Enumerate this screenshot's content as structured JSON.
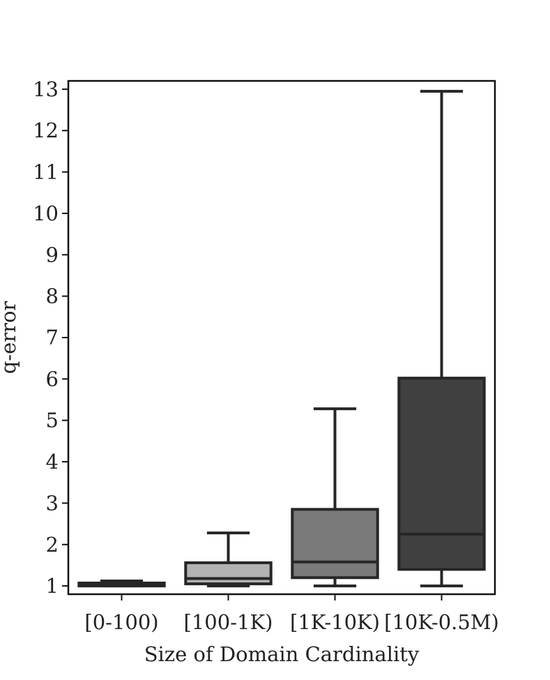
{
  "chart_data": {
    "type": "box",
    "xlabel": "Size of Domain Cardinality",
    "ylabel": "q-error",
    "ylim": [
      0.8,
      13.2
    ],
    "yticks": [
      1,
      2,
      3,
      4,
      5,
      6,
      7,
      8,
      9,
      10,
      11,
      12,
      13
    ],
    "ytick_labels": [
      "1",
      "2",
      "3",
      "4",
      "5",
      "6",
      "7",
      "8",
      "9",
      "10",
      "11",
      "12",
      "13"
    ],
    "categories": [
      "[0-100)",
      "[100-1K)",
      "[1K-10K)",
      "[10K-0.5M)"
    ],
    "boxes": [
      {
        "category": "[0-100)",
        "whisker_low": 1.0,
        "q1": 1.0,
        "median": 1.03,
        "q3": 1.07,
        "whisker_high": 1.12,
        "color": "#e6e6e6"
      },
      {
        "category": "[100-1K)",
        "whisker_low": 1.0,
        "q1": 1.05,
        "median": 1.18,
        "q3": 1.56,
        "whisker_high": 2.28,
        "color": "#b3b3b3"
      },
      {
        "category": "[1K-10K)",
        "whisker_low": 1.0,
        "q1": 1.2,
        "median": 1.58,
        "q3": 2.85,
        "whisker_high": 5.28,
        "color": "#7a7a7a"
      },
      {
        "category": "[10K-0.5M)",
        "whisker_low": 1.0,
        "q1": 1.4,
        "median": 2.25,
        "q3": 6.02,
        "whisker_high": 12.95,
        "color": "#404040"
      }
    ],
    "line_color": "#262626",
    "grid": false
  }
}
